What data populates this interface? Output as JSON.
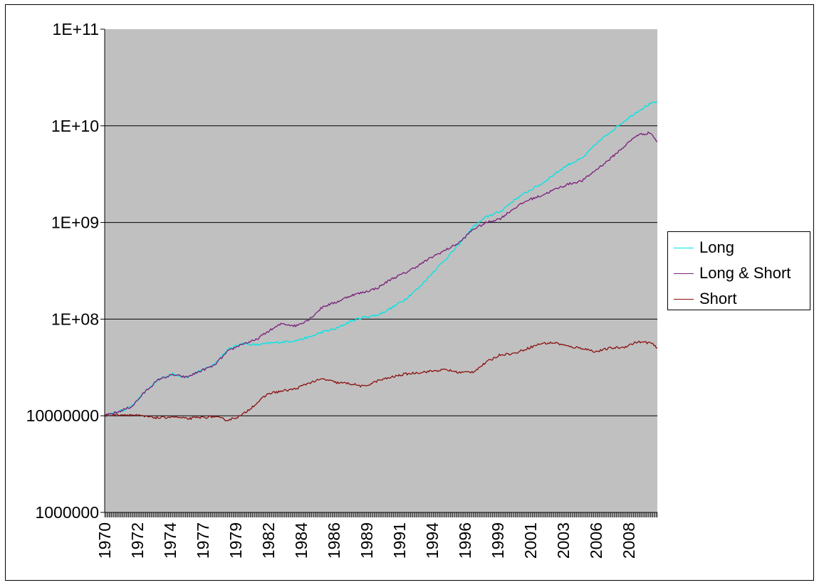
{
  "chart_data": {
    "type": "line",
    "title": "",
    "xlabel": "",
    "ylabel": "",
    "yscale": "log",
    "ylim": [
      1000000,
      100000000000
    ],
    "xlim": [
      1970,
      2010.5
    ],
    "grid": true,
    "legend": "right",
    "plot_background": "#c0c0c0",
    "y_tick_labels": [
      "1E+11",
      "1E+10",
      "1E+09",
      "1E+08",
      "10000000",
      "1000000"
    ],
    "y_tick_values": [
      100000000000,
      10000000000,
      1000000000,
      100000000,
      10000000,
      1000000
    ],
    "x_tick_labels": [
      "1970",
      "1972",
      "1974",
      "1977",
      "1979",
      "1982",
      "1984",
      "1986",
      "1989",
      "1991",
      "1994",
      "1996",
      "1999",
      "2001",
      "2003",
      "2006",
      "2008"
    ],
    "x_tick_values": [
      1970.0,
      1972.4,
      1974.8,
      1977.2,
      1979.6,
      1982.0,
      1984.4,
      1986.8,
      1989.2,
      1991.6,
      1994.0,
      1996.4,
      1998.8,
      2001.2,
      2003.6,
      2006.0,
      2008.4
    ],
    "series": [
      {
        "name": "Long",
        "color": "#00e5e5",
        "x": [
          1970,
          1971,
          1972,
          1973,
          1974,
          1975,
          1976,
          1977,
          1978,
          1979,
          1980,
          1981,
          1982,
          1983,
          1984,
          1985,
          1986,
          1987,
          1988,
          1989,
          1990,
          1991,
          1992,
          1993,
          1994,
          1995,
          1996,
          1997,
          1998,
          1999,
          2000,
          2001,
          2002,
          2003,
          2004,
          2005,
          2006,
          2007,
          2008,
          2009,
          2010,
          2010.5
        ],
        "y": [
          10000000,
          11000000,
          12500000,
          18000000,
          24000000,
          27000000,
          25000000,
          29000000,
          34000000,
          48000000,
          56000000,
          54000000,
          56000000,
          58000000,
          60000000,
          65000000,
          74000000,
          80000000,
          95000000,
          105000000,
          110000000,
          130000000,
          160000000,
          210000000,
          300000000,
          420000000,
          600000000,
          900000000,
          1150000000,
          1300000000,
          1700000000,
          2100000000,
          2500000000,
          3200000000,
          4000000000,
          4600000000,
          6500000000,
          8500000000,
          11000000000,
          14000000000,
          17000000000,
          17500000000
        ]
      },
      {
        "name": "Long & Short",
        "color": "#7a1f7a",
        "x": [
          1970,
          1971,
          1972,
          1973,
          1974,
          1975,
          1976,
          1977,
          1978,
          1979,
          1980,
          1981,
          1982,
          1983,
          1984,
          1985,
          1986,
          1987,
          1988,
          1989,
          1990,
          1991,
          1992,
          1993,
          1994,
          1995,
          1996,
          1997,
          1998,
          1999,
          2000,
          2001,
          2002,
          2003,
          2004,
          2005,
          2006,
          2007,
          2008,
          2009,
          2010,
          2010.5
        ],
        "y": [
          10000000,
          11000000,
          12500000,
          18000000,
          24000000,
          26500000,
          25000000,
          29000000,
          33000000,
          46000000,
          55000000,
          60000000,
          75000000,
          90000000,
          85000000,
          100000000,
          135000000,
          150000000,
          175000000,
          190000000,
          210000000,
          260000000,
          300000000,
          360000000,
          440000000,
          520000000,
          620000000,
          850000000,
          1000000000,
          1100000000,
          1400000000,
          1700000000,
          1900000000,
          2200000000,
          2500000000,
          2700000000,
          3500000000,
          4500000000,
          6000000000,
          8000000000,
          8500000000,
          6800000000
        ]
      },
      {
        "name": "Short",
        "color": "#8b1010",
        "x": [
          1970,
          1971,
          1972,
          1973,
          1974,
          1975,
          1976,
          1977,
          1978,
          1979,
          1980,
          1981,
          1982,
          1983,
          1984,
          1985,
          1986,
          1987,
          1988,
          1989,
          1990,
          1991,
          1992,
          1993,
          1994,
          1995,
          1996,
          1997,
          1998,
          1999,
          2000,
          2001,
          2002,
          2003,
          2004,
          2005,
          2006,
          2007,
          2008,
          2009,
          2010,
          2010.5
        ],
        "y": [
          10000000,
          10300000,
          10200000,
          9800000,
          9500000,
          9800000,
          9300000,
          9600000,
          9800000,
          9000000,
          10000000,
          13000000,
          17000000,
          18000000,
          19000000,
          22000000,
          24000000,
          22000000,
          21500000,
          20000000,
          23000000,
          25000000,
          27000000,
          28000000,
          29000000,
          30000000,
          28000000,
          28500000,
          36000000,
          43000000,
          44000000,
          50000000,
          56000000,
          57000000,
          52000000,
          50000000,
          46000000,
          50000000,
          51000000,
          58000000,
          57000000,
          50000000
        ]
      }
    ]
  }
}
